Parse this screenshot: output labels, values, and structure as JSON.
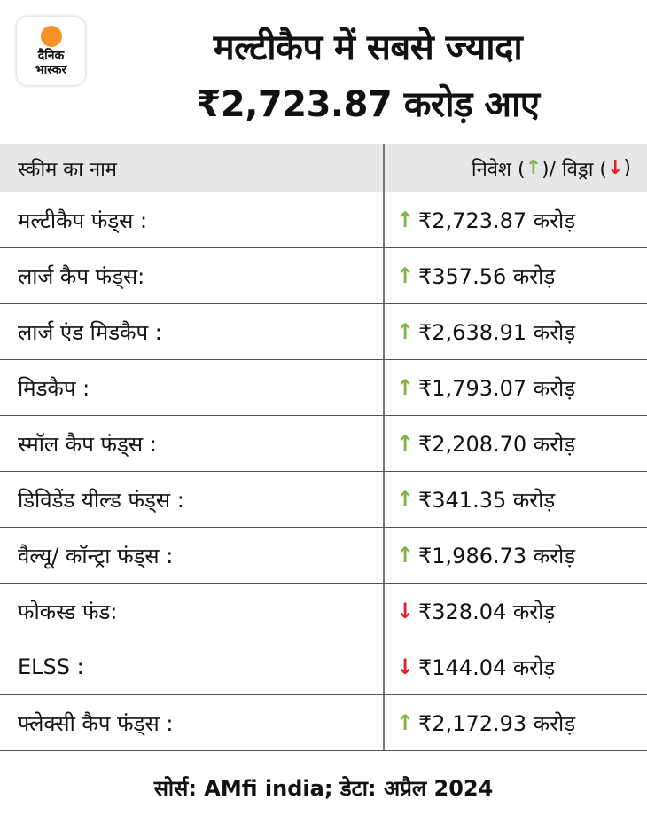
{
  "brand": {
    "logo_text_line1": "दैनिक",
    "logo_text_line2": "भास्कर",
    "accent": "#f7922a"
  },
  "title": {
    "line1": "मल्टीकैप में सबसे ज्यादा",
    "line2": "₹2,723.87 करोड़ आए"
  },
  "table": {
    "headers": {
      "scheme": "स्कीम का नाम",
      "flow_prefix": "निवेश (",
      "flow_mid": ")/ विड्रा (",
      "flow_suffix": ")"
    },
    "colors": {
      "up": "#7cb342",
      "down": "#e3202a",
      "header_bg": "#e6e7e8"
    },
    "rows": [
      {
        "name": "मल्टीकैप फंड्स :",
        "direction": "up",
        "value": "₹2,723.87 करोड़"
      },
      {
        "name": "लार्ज कैप फंड्स:",
        "direction": "up",
        "value": "₹357.56 करोड़"
      },
      {
        "name": "लार्ज एंड मिडकैप :",
        "direction": "up",
        "value": "₹2,638.91 करोड़"
      },
      {
        "name": "मिडकैप :",
        "direction": "up",
        "value": "₹1,793.07 करोड़"
      },
      {
        "name": "स्मॉल कैप फंड्स :",
        "direction": "up",
        "value": "₹2,208.70 करोड़"
      },
      {
        "name": "डिविडेंड यील्ड फंड्स :",
        "direction": "up",
        "value": "₹341.35 करोड़"
      },
      {
        "name": "वैल्यू/ कॉन्ट्रा फंड्स :",
        "direction": "up",
        "value": "₹1,986.73 करोड़"
      },
      {
        "name": "फोकस्ड फंड:",
        "direction": "down",
        "value": "₹328.04 करोड़"
      },
      {
        "name": "ELSS :",
        "direction": "down",
        "value": "₹144.04 करोड़"
      },
      {
        "name": "फ्लेक्सी कैप फंड्स :",
        "direction": "up",
        "value": "₹2,172.93 करोड़"
      }
    ]
  },
  "footer": {
    "source": "सोर्स: AMfi india; डेटा: अप्रैल 2024"
  }
}
